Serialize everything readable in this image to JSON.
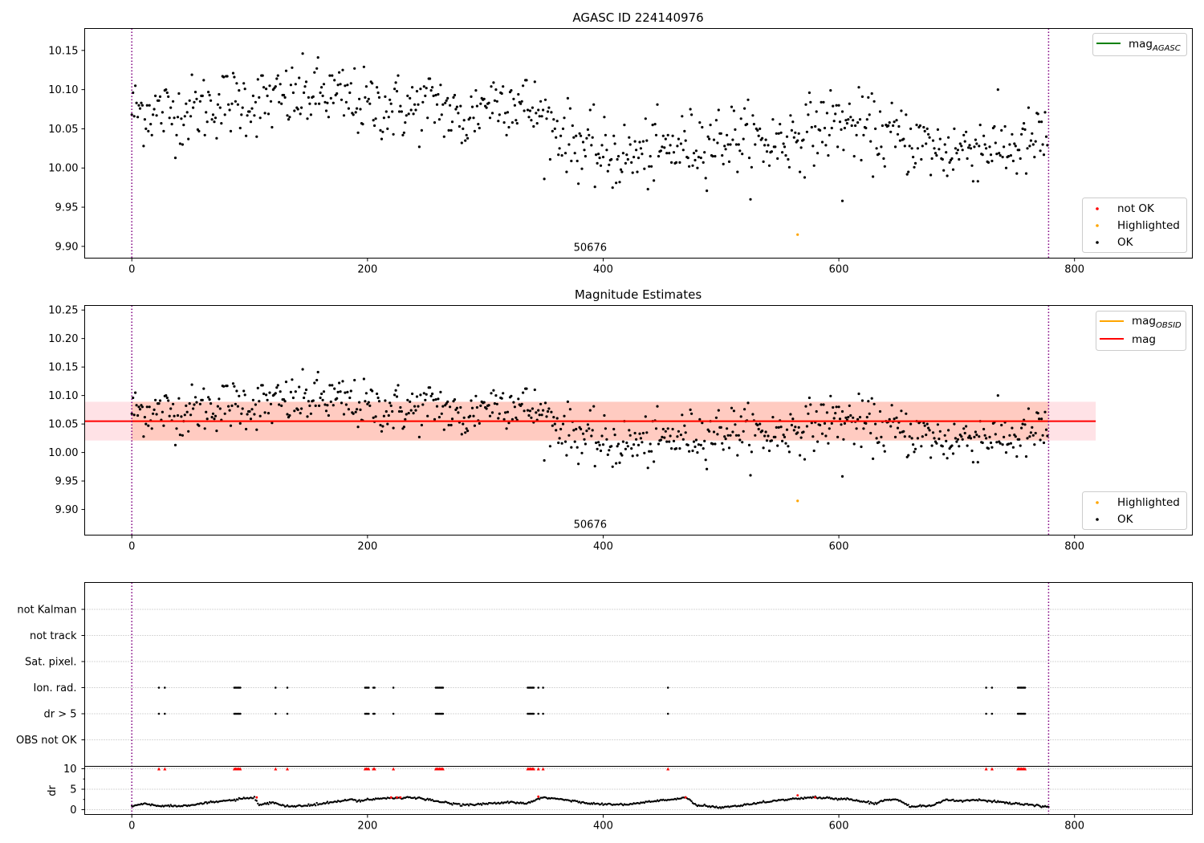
{
  "chart_data": [
    {
      "type": "scatter",
      "title": "AGASC ID 224140976",
      "xlim": [
        -40,
        900
      ],
      "ylim": [
        9.885,
        10.178
      ],
      "xticks": [
        0,
        200,
        400,
        600,
        800
      ],
      "yticks": [
        9.9,
        9.95,
        10.0,
        10.05,
        10.1,
        10.15
      ],
      "ytick_labels": [
        "9.90",
        "9.95",
        "10.00",
        "10.05",
        "10.10",
        "10.15"
      ],
      "obsid_bounds": [
        0,
        778
      ],
      "obsid_label": "50676",
      "obsid_label_x": 389,
      "lines": [
        {
          "name": "mag_AGASC",
          "name_base": "mag",
          "name_sub": "AGASC",
          "y": 10.95,
          "color": "#008000"
        }
      ],
      "legend_lines_position": "upper right",
      "legend_points_position": "lower right",
      "series": [
        {
          "name": "not OK",
          "color": "#ff0000",
          "points": []
        },
        {
          "name": "Highlighted",
          "color": "#ffa500",
          "points": [
            [
              565,
              9.915
            ]
          ]
        },
        {
          "name": "OK",
          "color": "#000000",
          "points": [],
          "trend": [
            [
              0,
              10.075
            ],
            [
              40,
              10.07
            ],
            [
              80,
              10.085
            ],
            [
              120,
              10.085
            ],
            [
              160,
              10.095
            ],
            [
              200,
              10.08
            ],
            [
              240,
              10.075
            ],
            [
              260,
              10.085
            ],
            [
              280,
              10.055
            ],
            [
              300,
              10.085
            ],
            [
              320,
              10.09
            ],
            [
              340,
              10.075
            ],
            [
              360,
              10.05
            ],
            [
              380,
              10.03
            ],
            [
              400,
              10.015
            ],
            [
              430,
              10.015
            ],
            [
              460,
              10.025
            ],
            [
              490,
              10.035
            ],
            [
              510,
              10.04
            ],
            [
              540,
              10.03
            ],
            [
              570,
              10.045
            ],
            [
              600,
              10.06
            ],
            [
              630,
              10.045
            ],
            [
              660,
              10.035
            ],
            [
              690,
              10.02
            ],
            [
              720,
              10.03
            ],
            [
              750,
              10.025
            ],
            [
              778,
              10.04
            ]
          ],
          "spread": 0.022,
          "count": 778,
          "extra": [
            [
              603,
              9.958
            ]
          ]
        }
      ]
    },
    {
      "type": "scatter",
      "title": "Magnitude Estimates",
      "xlim": [
        -40,
        900
      ],
      "ylim": [
        9.855,
        10.258
      ],
      "xticks": [
        0,
        200,
        400,
        600,
        800
      ],
      "yticks": [
        9.9,
        9.95,
        10.0,
        10.05,
        10.1,
        10.15,
        10.2,
        10.25
      ],
      "ytick_labels": [
        "9.90",
        "9.95",
        "10.00",
        "10.05",
        "10.10",
        "10.15",
        "10.20",
        "10.25"
      ],
      "obsid_bounds": [
        0,
        778
      ],
      "obsid_label": "50676",
      "obsid_label_x": 389,
      "lines": [
        {
          "name": "mag_OBSID",
          "name_base": "mag",
          "name_sub": "OBSID",
          "y": 10.055,
          "x_range": [
            0,
            778
          ],
          "color": "#ffa500",
          "band": [
            10.021,
            10.089
          ],
          "band_color": "#ffa07a"
        },
        {
          "name": "mag",
          "name_base": "mag",
          "name_sub": "",
          "y": 10.055,
          "x_range": [
            -40,
            818
          ],
          "color": "#ff0000",
          "band": [
            10.021,
            10.089
          ],
          "band_color": "#ffb6c1"
        }
      ],
      "legend_lines_position": "upper right",
      "legend_points_position": "lower right",
      "series": [
        {
          "name": "Highlighted",
          "color": "#ffa500",
          "points": [
            [
              565,
              9.915
            ]
          ]
        },
        {
          "name": "OK",
          "color": "#000000",
          "points": [],
          "same_as_panel": 0
        }
      ]
    },
    {
      "type": "scatter",
      "title": "",
      "xlim": [
        -40,
        900
      ],
      "xticks": [
        0,
        200,
        400,
        600,
        800
      ],
      "obsid_bounds": [
        0,
        778
      ],
      "flag_categories": [
        "OBS not OK",
        "dr > 5",
        "Ion. rad.",
        "Sat. pixel.",
        "not track",
        "not Kalman"
      ],
      "flag_x": [
        23,
        28,
        87,
        88,
        89,
        90,
        91,
        92,
        122,
        132,
        198,
        199,
        200,
        201,
        205,
        206,
        222,
        258,
        259,
        260,
        261,
        262,
        263,
        264,
        336,
        337,
        338,
        339,
        340,
        341,
        345,
        349,
        455,
        725,
        730,
        752,
        753,
        754,
        755,
        756,
        757,
        758
      ],
      "flag_rows": [
        "dr > 5",
        "Ion. rad."
      ],
      "dr_ylabel": "dr",
      "dr_ylim": [
        -0.5,
        10.5
      ],
      "dr_yticks": [
        0,
        5,
        10
      ],
      "dr_ytick_labels": [
        "0",
        "5",
        "10"
      ],
      "dr_clip": 10,
      "dr_trend": [
        [
          0,
          0.8
        ],
        [
          10,
          1.5
        ],
        [
          20,
          1.0
        ],
        [
          40,
          0.9
        ],
        [
          60,
          1.5
        ],
        [
          80,
          2.2
        ],
        [
          100,
          2.8
        ],
        [
          104,
          3.0
        ],
        [
          108,
          1.0
        ],
        [
          120,
          1.8
        ],
        [
          130,
          0.8
        ],
        [
          150,
          1.0
        ],
        [
          170,
          1.8
        ],
        [
          185,
          2.4
        ],
        [
          195,
          2.2
        ],
        [
          200,
          2.5
        ],
        [
          220,
          2.9
        ],
        [
          240,
          2.9
        ],
        [
          260,
          2.0
        ],
        [
          280,
          1.2
        ],
        [
          300,
          1.4
        ],
        [
          320,
          1.8
        ],
        [
          335,
          1.5
        ],
        [
          350,
          3.0
        ],
        [
          370,
          2.3
        ],
        [
          385,
          1.7
        ],
        [
          400,
          1.3
        ],
        [
          420,
          1.2
        ],
        [
          440,
          2.0
        ],
        [
          460,
          2.5
        ],
        [
          470,
          3.0
        ],
        [
          480,
          1.0
        ],
        [
          500,
          0.5
        ],
        [
          520,
          1.2
        ],
        [
          540,
          2.0
        ],
        [
          560,
          2.6
        ],
        [
          580,
          3.0
        ],
        [
          610,
          2.5
        ],
        [
          630,
          1.5
        ],
        [
          640,
          2.4
        ],
        [
          650,
          2.6
        ],
        [
          660,
          0.8
        ],
        [
          680,
          1.0
        ],
        [
          690,
          2.4
        ],
        [
          700,
          2.2
        ],
        [
          720,
          2.3
        ],
        [
          740,
          1.8
        ],
        [
          760,
          1.2
        ],
        [
          778,
          0.6
        ]
      ],
      "dr_red_points": [
        [
          106,
          3.0
        ],
        [
          220,
          3.0
        ],
        [
          225,
          3.0
        ],
        [
          228,
          3.0
        ],
        [
          345,
          3.2
        ],
        [
          470,
          3.0
        ],
        [
          565,
          3.5
        ],
        [
          580,
          3.0
        ]
      ],
      "colors": {
        "ok": "#000000",
        "flag": "#ff0000",
        "bounds": "#800080"
      }
    }
  ]
}
